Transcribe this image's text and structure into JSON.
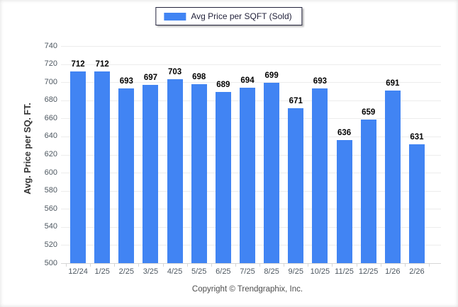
{
  "legend": {
    "label": "Avg Price per SQFT (Sold)"
  },
  "footer": {
    "copyright": "Copyright © Trendgraphix, Inc."
  },
  "colors": {
    "bar": "#4184f3",
    "grid": "#ececec",
    "axis": "#d6d6d6",
    "tick_text": "#4d5760",
    "legend_border": "#23233c",
    "value_label": "#000000"
  },
  "chart_data": {
    "type": "bar",
    "title": "",
    "xlabel": "",
    "ylabel": "Avg. Price per SQ. FT.",
    "ylim": [
      500,
      740
    ],
    "ytick_step": 20,
    "grid": true,
    "legend_position": "top-center",
    "categories": [
      "12/24",
      "1/25",
      "2/25",
      "3/25",
      "4/25",
      "5/25",
      "6/25",
      "7/25",
      "8/25",
      "9/25",
      "10/25",
      "11/25",
      "12/25",
      "1/26",
      "2/26"
    ],
    "series": [
      {
        "name": "Avg Price per SQFT (Sold)",
        "values": [
          712,
          712,
          693,
          697,
          703,
          698,
          689,
          694,
          699,
          671,
          693,
          636,
          659,
          691,
          631
        ]
      }
    ]
  }
}
